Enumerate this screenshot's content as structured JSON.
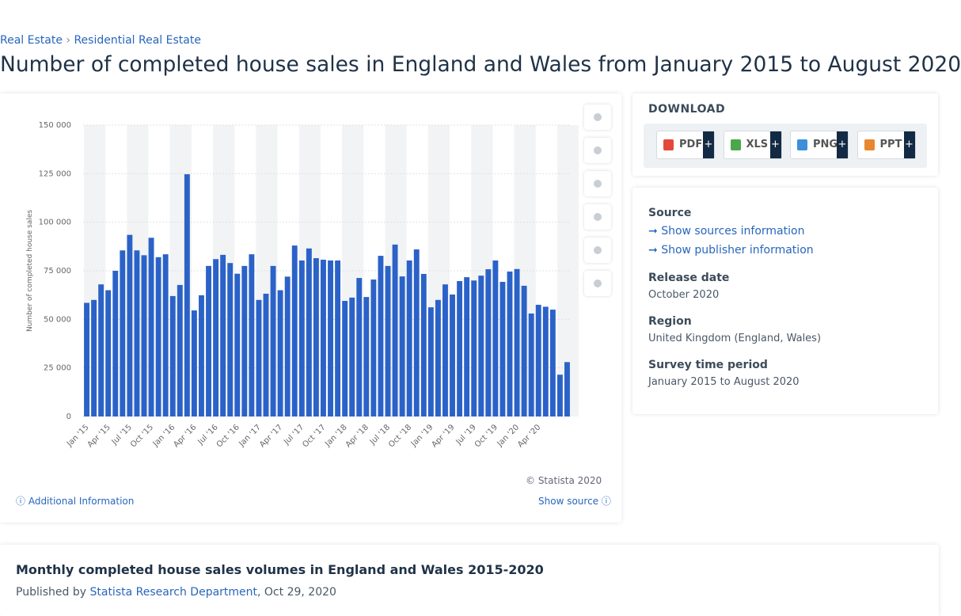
{
  "breadcrumb": [
    "Real Estate",
    "Residential Real Estate"
  ],
  "page_title": "Number of completed house sales in England and Wales from January 2015 to August 2020",
  "chart_data": {
    "type": "bar",
    "y_axis_label": "Number of completed house sales",
    "color": "#2b62c8",
    "categories": [
      "Jan '15",
      null,
      null,
      "Apr '15",
      null,
      null,
      "Jul '15",
      null,
      null,
      "Oct '15",
      null,
      null,
      "Jan '16",
      null,
      null,
      "Apr '16",
      null,
      null,
      "Jul '16",
      null,
      null,
      "Oct '16",
      null,
      null,
      "Jan '17",
      null,
      null,
      "Apr '17",
      null,
      null,
      "Jul '17",
      null,
      null,
      "Oct '17",
      null,
      null,
      "Jan '18",
      null,
      null,
      "Apr '18",
      null,
      null,
      "Jul '18",
      null,
      null,
      "Oct '18",
      null,
      null,
      "Jan '19",
      null,
      null,
      "Apr '19",
      null,
      null,
      "Jul '19",
      null,
      null,
      "Oct '19",
      null,
      null,
      "Jan '20",
      null,
      null,
      "Apr '20",
      null,
      null,
      null,
      null
    ],
    "values": [
      58500,
      60000,
      68000,
      65000,
      75000,
      85500,
      93500,
      85500,
      83000,
      92000,
      82000,
      83500,
      62000,
      67700,
      124700,
      54600,
      62400,
      77500,
      81000,
      83200,
      79000,
      73500,
      77500,
      83500,
      60000,
      63200,
      77500,
      65000,
      72000,
      88000,
      80300,
      86500,
      81500,
      80700,
      80300,
      80300,
      59500,
      61200,
      71300,
      61500,
      70500,
      82700,
      77500,
      88500,
      72100,
      80300,
      86000,
      73400,
      56200,
      60000,
      68000,
      62800,
      69700,
      71700,
      70000,
      72500,
      75800,
      80300,
      69300,
      74600,
      75900,
      67300,
      53000,
      57500,
      56500,
      55000,
      21500,
      28000
    ],
    "ylim": [
      0,
      150000
    ],
    "yticks": [
      0,
      {
        "value": 25000,
        "label": "25 000"
      },
      {
        "value": 50000,
        "label": "50 000"
      },
      {
        "value": 75000,
        "label": "75 000"
      },
      {
        "value": 100000,
        "label": "100 000"
      },
      {
        "value": 125000,
        "label": "125 000"
      },
      {
        "value": 150000,
        "label": "150 000"
      }
    ],
    "grid": true
  },
  "copyright": "© Statista 2020",
  "additional_info": "Additional Information",
  "show_source": "Show source",
  "download": {
    "heading": "DOWNLOAD",
    "buttons": [
      "PDF",
      "XLS",
      "PNG",
      "PPT"
    ],
    "plus": "+"
  },
  "details": {
    "source_heading": "Source",
    "source_link": "Show sources information",
    "publisher_link": "Show publisher information",
    "release_heading": "Release date",
    "release": "October 2020",
    "region_heading": "Region",
    "region": "United Kingdom (England, Wales)",
    "period_heading": "Survey time period",
    "period": "January 2015 to August 2020"
  },
  "footer": {
    "heading": "Monthly completed house sales volumes in England and Wales 2015-2020",
    "published_by": "Published by",
    "author": "Statista Research Department",
    "published_suffix": ", Oct 29, 2020"
  }
}
